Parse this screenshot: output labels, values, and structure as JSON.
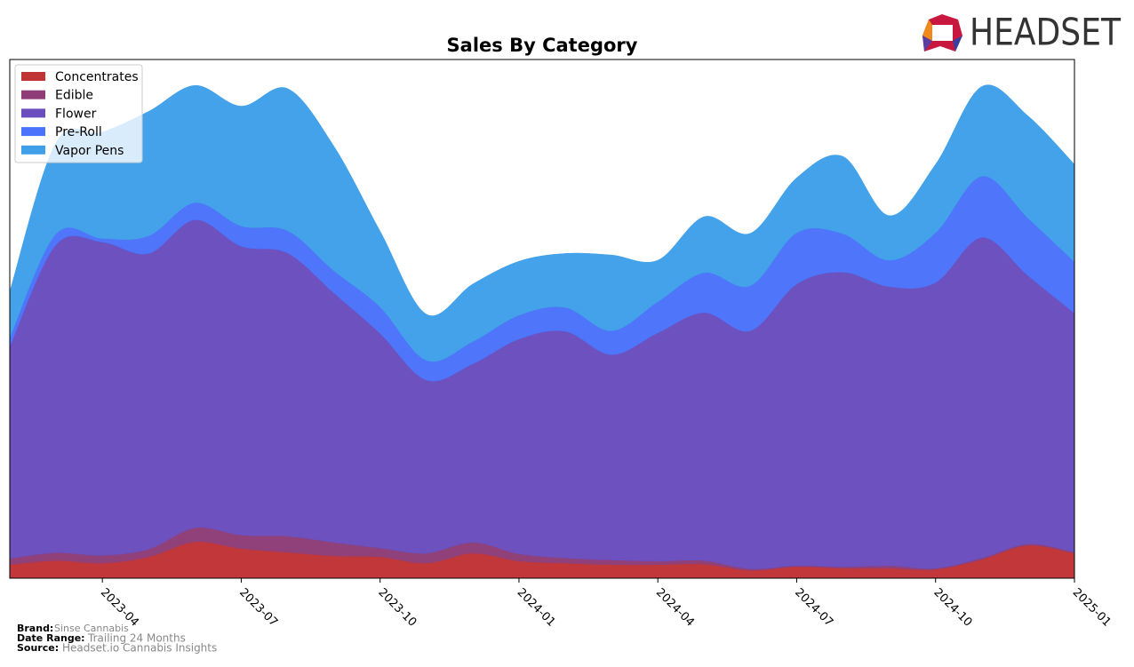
{
  "chart_data": {
    "type": "stacked-area",
    "title": "Sales By Category",
    "x": [
      "2023-02",
      "2023-03",
      "2023-04",
      "2023-05",
      "2023-06",
      "2023-07",
      "2023-08",
      "2023-09",
      "2023-10",
      "2023-11",
      "2023-12",
      "2024-01",
      "2024-02",
      "2024-03",
      "2024-04",
      "2024-05",
      "2024-06",
      "2024-07",
      "2024-08",
      "2024-09",
      "2024-10",
      "2024-11",
      "2024-12",
      "2025-01"
    ],
    "xlim": [
      "2023-02",
      "2025-01"
    ],
    "xticks": [
      "2023-04",
      "2023-07",
      "2023-10",
      "2024-01",
      "2024-04",
      "2024-07",
      "2024-10",
      "2025-01"
    ],
    "ylim": [
      0,
      100
    ],
    "legend": "upper left",
    "series": [
      {
        "name": "Concentrates",
        "color": "#c13436",
        "values": [
          2.6,
          3.4,
          2.9,
          4.1,
          7.0,
          5.7,
          5.0,
          4.3,
          4.1,
          2.9,
          4.8,
          3.3,
          2.9,
          2.6,
          2.6,
          2.7,
          1.5,
          2.2,
          1.9,
          1.9,
          1.7,
          3.6,
          6.3,
          4.8
        ]
      },
      {
        "name": "Edible",
        "color": "#8f3d77",
        "values": [
          1.2,
          1.5,
          1.5,
          1.5,
          2.7,
          2.6,
          3.1,
          2.6,
          1.7,
          1.9,
          2.1,
          1.4,
          1.0,
          0.9,
          0.7,
          0.7,
          0.3,
          0.2,
          0.3,
          0.5,
          0.2,
          0.3,
          0.3,
          0.2
        ]
      },
      {
        "name": "Flower",
        "color": "#6a4ebe",
        "values": [
          40.9,
          59.4,
          60.4,
          57.0,
          59.4,
          55.7,
          54.6,
          48.1,
          41.4,
          33.4,
          34.4,
          41.4,
          43.7,
          39.6,
          44.0,
          47.8,
          45.9,
          54.3,
          56.8,
          53.8,
          55.1,
          61.8,
          51.7,
          46.1
        ]
      },
      {
        "name": "Pre-Roll",
        "color": "#4a72fa",
        "values": [
          1.7,
          2.1,
          0.7,
          3.4,
          3.3,
          3.9,
          4.3,
          4.3,
          5.1,
          3.8,
          4.3,
          4.6,
          4.6,
          4.6,
          6.0,
          7.7,
          8.7,
          9.9,
          7.4,
          5.1,
          9.6,
          11.8,
          11.1,
          9.9
        ]
      },
      {
        "name": "Vapor Pens",
        "color": "#3fa0e9",
        "values": [
          8.9,
          17.6,
          20.5,
          24.0,
          22.6,
          23.1,
          27.4,
          24.0,
          14.6,
          8.9,
          11.1,
          10.4,
          10.4,
          14.6,
          8.0,
          10.8,
          10.1,
          10.6,
          14.9,
          8.6,
          13.2,
          17.3,
          19.7,
          18.8
        ]
      }
    ]
  },
  "logo": "HEADSET",
  "footer": {
    "brand_label": "Brand:",
    "brand": "Sinse Cannabis",
    "range_label": "Date Range:",
    "range": "Trailing 24 Months",
    "source_label": "Source:",
    "source": "Headset.io Cannabis Insights"
  }
}
